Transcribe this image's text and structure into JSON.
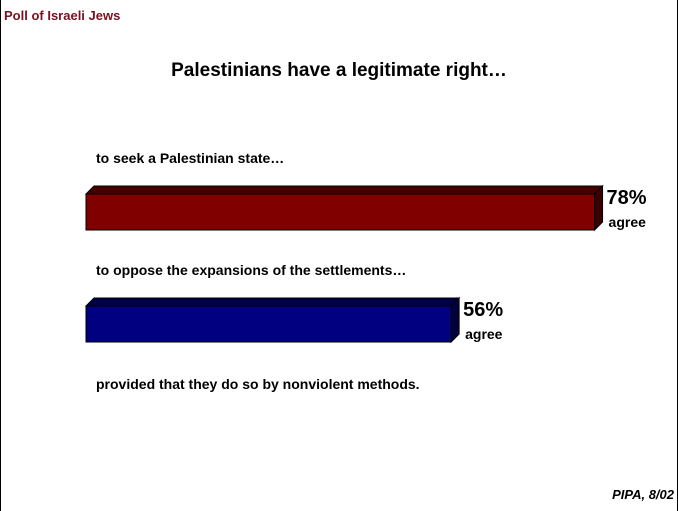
{
  "header": "Poll of Israeli Jews",
  "source": "PIPA, 8/02",
  "chart_data": {
    "type": "bar",
    "title": "Palestinians have a legitimate right…",
    "categories": [
      "to seek a Palestinian state…",
      "to oppose the expansions of the settlements…"
    ],
    "values": [
      78,
      56
    ],
    "value_labels": [
      "78%",
      "56%"
    ],
    "value_sublabel": "agree",
    "footnote": "provided that they do so by nonviolent methods.",
    "xlim": [
      0,
      100
    ],
    "grid": false,
    "legend": "none",
    "colors": [
      "#800000",
      "#000080"
    ]
  }
}
